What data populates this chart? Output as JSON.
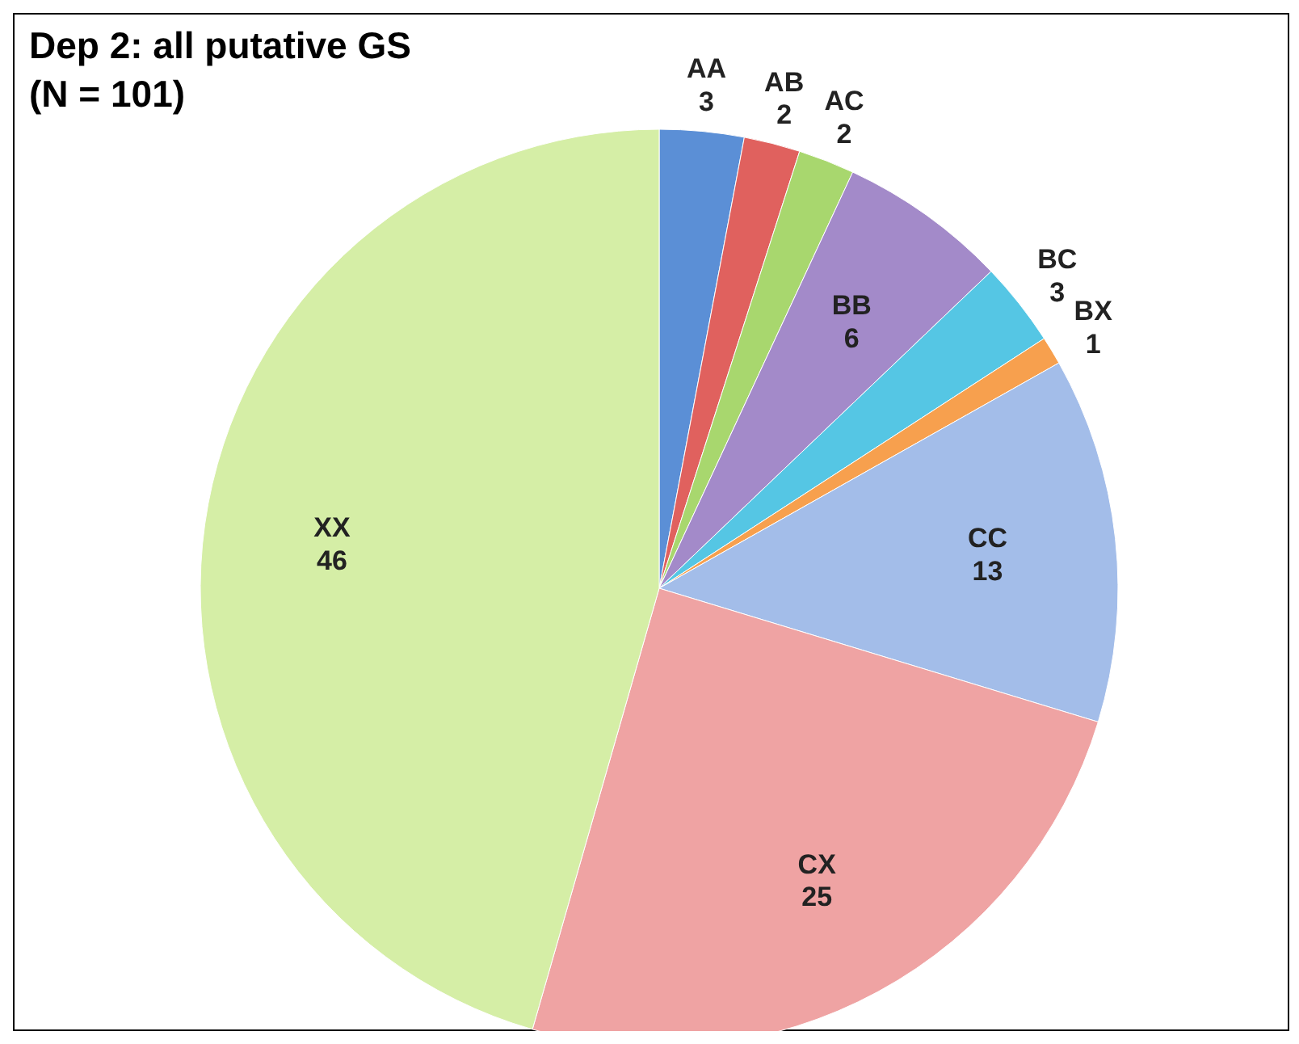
{
  "chart_data": {
    "type": "pie",
    "title": "Dep 2:  all putative GS",
    "subtitle": "(N = 101)",
    "categories": [
      "AA",
      "AB",
      "AC",
      "BB",
      "BC",
      "BX",
      "CC",
      "CX",
      "XX"
    ],
    "values": [
      3,
      2,
      2,
      6,
      3,
      1,
      13,
      25,
      46
    ],
    "colors": [
      "#5b8fd6",
      "#e0615e",
      "#a8d76e",
      "#a38ac9",
      "#55c6e4",
      "#f7a04e",
      "#a3bde9",
      "#efa3a3",
      "#d5eea6"
    ],
    "data_labels": true,
    "legend": false
  }
}
